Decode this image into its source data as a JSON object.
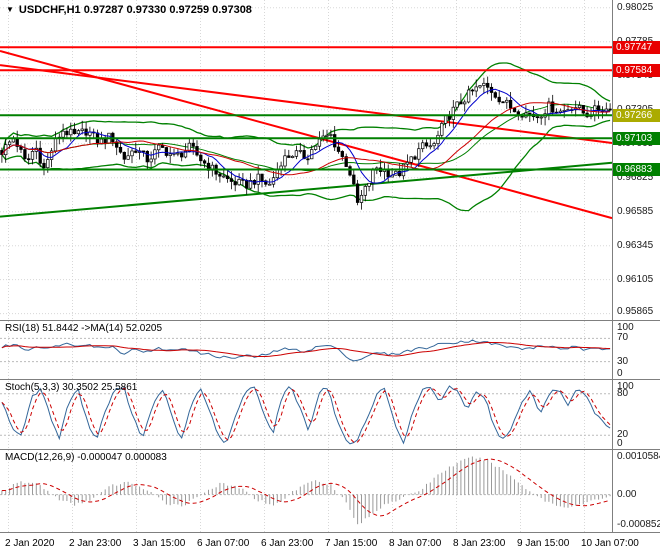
{
  "window": {
    "symbol_line": "USDCHF,H1 0.97287 0.97330 0.97259 0.97308"
  },
  "colors": {
    "background": "#FFFFFF",
    "grid": "#D8D8D8",
    "panel_border": "#7F7F7F",
    "candle": "#000000",
    "up_fill": "#FFFFFF",
    "down_fill": "#000000",
    "ma_fast": "#0000CC",
    "ma_slow": "#CC0000",
    "band": "#008000",
    "trend_red": "#FF0000",
    "level_red": "#FF0000",
    "level_green": "#008000",
    "current_label_bg": "#ABAB00",
    "label_red_bg": "#E80000",
    "label_green_bg": "#008000",
    "rsi_line": "#336699",
    "rsi_ma": "#CC0000",
    "stoch_line": "#336699",
    "stoch_signal": "#CC0000",
    "macd_hist": "#999999",
    "macd_signal": "#CC0000",
    "text": "#000000"
  },
  "chart_data": [
    {
      "type": "candlestick",
      "title": "USDCHF,H1",
      "ohlc_header": {
        "open": 0.97287,
        "high": 0.9733,
        "low": 0.97259,
        "close": 0.97308
      },
      "bars": 160,
      "ylim": [
        0.9582,
        0.9808
      ],
      "y_tick_values": [
        0.98025,
        0.97785,
        0.97545,
        0.97305,
        0.97065,
        0.96825,
        0.96585,
        0.96345,
        0.96105,
        0.95865
      ],
      "y_tick_labels": [
        "0.98025",
        "0.97785",
        "0.97545",
        "0.97305",
        "0.97065",
        "0.96825",
        "0.96585",
        "0.96345",
        "0.96105",
        "0.95865"
      ],
      "x_tick_labels": [
        "2 Jan 2020",
        "2 Jan 23:00",
        "3 Jan 15:00",
        "6 Jan 07:00",
        "6 Jan 23:00",
        "7 Jan 15:00",
        "8 Jan 07:00",
        "8 Jan 23:00",
        "9 Jan 15:00",
        "10 Jan 07:00"
      ],
      "levels": [
        {
          "price": 0.97747,
          "label": "0.97747",
          "line": "#FF0000",
          "bg": "#E80000"
        },
        {
          "price": 0.97584,
          "label": "0.97584",
          "line": "#FF0000",
          "bg": "#E80000"
        },
        {
          "price": 0.97266,
          "label": "0.97266",
          "line": "#008000",
          "bg": "#ABAB00"
        },
        {
          "price": 0.97103,
          "label": "0.97103",
          "line": "#008000",
          "bg": "#008000"
        },
        {
          "price": 0.96883,
          "label": "0.96883",
          "line": "#008000",
          "bg": "#008000"
        }
      ],
      "trendlines": [
        {
          "x0": 0,
          "p0": 0.9772,
          "x1": 1,
          "p1": 0.9654,
          "color": "#FF0000"
        },
        {
          "x0": 0,
          "p0": 0.9762,
          "x1": 1,
          "p1": 0.9707,
          "color": "#FF0000"
        },
        {
          "x0": 0,
          "p0": 0.9655,
          "x1": 1,
          "p1": 0.9693,
          "color": "#008000"
        }
      ],
      "close_path": [
        [
          0.0,
          0.9701
        ],
        [
          0.02,
          0.9711
        ],
        [
          0.04,
          0.9692
        ],
        [
          0.055,
          0.9705
        ],
        [
          0.07,
          0.9688
        ],
        [
          0.085,
          0.9706
        ],
        [
          0.1,
          0.9716
        ],
        [
          0.12,
          0.9712
        ],
        [
          0.14,
          0.9716
        ],
        [
          0.16,
          0.9707
        ],
        [
          0.18,
          0.9712
        ],
        [
          0.2,
          0.9696
        ],
        [
          0.22,
          0.9703
        ],
        [
          0.24,
          0.9695
        ],
        [
          0.26,
          0.9704
        ],
        [
          0.285,
          0.9697
        ],
        [
          0.31,
          0.9704
        ],
        [
          0.33,
          0.9694
        ],
        [
          0.35,
          0.9687
        ],
        [
          0.375,
          0.968
        ],
        [
          0.4,
          0.9677
        ],
        [
          0.42,
          0.9682
        ],
        [
          0.44,
          0.9677
        ],
        [
          0.46,
          0.9695
        ],
        [
          0.48,
          0.97
        ],
        [
          0.5,
          0.9697
        ],
        [
          0.52,
          0.9708
        ],
        [
          0.54,
          0.9713
        ],
        [
          0.555,
          0.97
        ],
        [
          0.57,
          0.969
        ],
        [
          0.585,
          0.9664
        ],
        [
          0.6,
          0.9676
        ],
        [
          0.615,
          0.969
        ],
        [
          0.63,
          0.9687
        ],
        [
          0.65,
          0.9684
        ],
        [
          0.67,
          0.9694
        ],
        [
          0.69,
          0.9704
        ],
        [
          0.71,
          0.9705
        ],
        [
          0.73,
          0.9724
        ],
        [
          0.75,
          0.9734
        ],
        [
          0.77,
          0.9742
        ],
        [
          0.79,
          0.9748
        ],
        [
          0.805,
          0.9744
        ],
        [
          0.82,
          0.9738
        ],
        [
          0.84,
          0.9731
        ],
        [
          0.86,
          0.9728
        ],
        [
          0.88,
          0.9726
        ],
        [
          0.9,
          0.9733
        ],
        [
          0.92,
          0.9729
        ],
        [
          0.94,
          0.9734
        ],
        [
          0.96,
          0.9727
        ],
        [
          0.98,
          0.9731
        ],
        [
          1.0,
          0.97308
        ]
      ],
      "overlays": {
        "ma_fast_period": 8,
        "ma_slow_period": 24,
        "band_period": 30,
        "band_dev": 2
      }
    },
    {
      "type": "line",
      "name": "RSI",
      "label": "RSI(18) 51.8442  ->MA(14) 52.0205",
      "value": 51.8442,
      "ma_value": 52.0205,
      "ma_period": 14,
      "ylim": [
        0,
        100
      ],
      "levels": [
        70,
        30
      ],
      "y_tick_values": [
        100,
        70,
        30,
        0
      ],
      "y_tick_labels": [
        "100",
        "70",
        "30",
        "0"
      ],
      "path": [
        [
          0.0,
          55
        ],
        [
          0.02,
          60
        ],
        [
          0.04,
          50
        ],
        [
          0.06,
          57
        ],
        [
          0.08,
          52
        ],
        [
          0.1,
          62
        ],
        [
          0.12,
          58
        ],
        [
          0.14,
          61
        ],
        [
          0.16,
          53
        ],
        [
          0.18,
          57
        ],
        [
          0.2,
          44
        ],
        [
          0.22,
          52
        ],
        [
          0.24,
          46
        ],
        [
          0.26,
          53
        ],
        [
          0.28,
          48
        ],
        [
          0.3,
          54
        ],
        [
          0.32,
          46
        ],
        [
          0.34,
          42
        ],
        [
          0.36,
          38
        ],
        [
          0.38,
          36
        ],
        [
          0.4,
          40
        ],
        [
          0.42,
          38
        ],
        [
          0.44,
          44
        ],
        [
          0.46,
          52
        ],
        [
          0.48,
          50
        ],
        [
          0.5,
          48
        ],
        [
          0.52,
          56
        ],
        [
          0.54,
          58
        ],
        [
          0.56,
          45
        ],
        [
          0.58,
          30
        ],
        [
          0.6,
          40
        ],
        [
          0.62,
          45
        ],
        [
          0.64,
          42
        ],
        [
          0.66,
          46
        ],
        [
          0.68,
          52
        ],
        [
          0.7,
          54
        ],
        [
          0.72,
          60
        ],
        [
          0.74,
          63
        ],
        [
          0.76,
          65
        ],
        [
          0.78,
          66
        ],
        [
          0.8,
          62
        ],
        [
          0.82,
          58
        ],
        [
          0.84,
          54
        ],
        [
          0.86,
          52
        ],
        [
          0.88,
          55
        ],
        [
          0.9,
          57
        ],
        [
          0.92,
          52
        ],
        [
          0.94,
          55
        ],
        [
          0.96,
          50
        ],
        [
          0.98,
          52
        ],
        [
          1.0,
          51.84
        ]
      ]
    },
    {
      "type": "line",
      "name": "Stochastic",
      "label": "Stoch(5,3,3) 30.3502 25.5861",
      "values": [
        30.3502,
        25.5861
      ],
      "signal_period": 3,
      "ylim": [
        0,
        100
      ],
      "levels": [
        80,
        20
      ],
      "y_tick_values": [
        100,
        80,
        20,
        0
      ],
      "y_tick_labels": [
        "100",
        "80",
        "20",
        "0"
      ],
      "path": [
        [
          0.0,
          70
        ],
        [
          0.015,
          35
        ],
        [
          0.03,
          15
        ],
        [
          0.05,
          75
        ],
        [
          0.065,
          90
        ],
        [
          0.08,
          45
        ],
        [
          0.095,
          15
        ],
        [
          0.11,
          70
        ],
        [
          0.125,
          88
        ],
        [
          0.14,
          40
        ],
        [
          0.155,
          12
        ],
        [
          0.17,
          55
        ],
        [
          0.185,
          85
        ],
        [
          0.2,
          90
        ],
        [
          0.215,
          50
        ],
        [
          0.23,
          15
        ],
        [
          0.25,
          65
        ],
        [
          0.265,
          88
        ],
        [
          0.28,
          45
        ],
        [
          0.295,
          12
        ],
        [
          0.31,
          60
        ],
        [
          0.325,
          90
        ],
        [
          0.34,
          60
        ],
        [
          0.355,
          18
        ],
        [
          0.37,
          8
        ],
        [
          0.385,
          50
        ],
        [
          0.4,
          82
        ],
        [
          0.415,
          90
        ],
        [
          0.43,
          55
        ],
        [
          0.445,
          20
        ],
        [
          0.46,
          75
        ],
        [
          0.475,
          92
        ],
        [
          0.49,
          60
        ],
        [
          0.505,
          25
        ],
        [
          0.52,
          80
        ],
        [
          0.535,
          90
        ],
        [
          0.55,
          45
        ],
        [
          0.565,
          12
        ],
        [
          0.58,
          8
        ],
        [
          0.6,
          40
        ],
        [
          0.615,
          78
        ],
        [
          0.63,
          88
        ],
        [
          0.645,
          38
        ],
        [
          0.66,
          10
        ],
        [
          0.675,
          50
        ],
        [
          0.69,
          85
        ],
        [
          0.705,
          90
        ],
        [
          0.72,
          65
        ],
        [
          0.735,
          90
        ],
        [
          0.75,
          85
        ],
        [
          0.765,
          55
        ],
        [
          0.78,
          85
        ],
        [
          0.795,
          75
        ],
        [
          0.81,
          30
        ],
        [
          0.825,
          12
        ],
        [
          0.84,
          35
        ],
        [
          0.855,
          70
        ],
        [
          0.87,
          85
        ],
        [
          0.885,
          50
        ],
        [
          0.9,
          80
        ],
        [
          0.915,
          88
        ],
        [
          0.93,
          60
        ],
        [
          0.945,
          85
        ],
        [
          0.96,
          78
        ],
        [
          0.975,
          50
        ],
        [
          1.0,
          30.35
        ]
      ]
    },
    {
      "type": "histogram+line",
      "name": "MACD",
      "label": "MACD(12,26,9) -0.000047 0.000083",
      "values": [
        -4.7e-05,
        8.3e-05
      ],
      "signal_period": 9,
      "ylim": [
        -0.00105,
        0.00125
      ],
      "y_tick_values": [
        0.0010584,
        0,
        -0.000852
      ],
      "y_tick_labels": [
        "0.0010584",
        "0.00",
        "-0.000852"
      ],
      "path": [
        [
          0.0,
          0.0001
        ],
        [
          0.03,
          0.00035
        ],
        [
          0.06,
          0.0003
        ],
        [
          0.09,
          -0.0001
        ],
        [
          0.12,
          -0.0003
        ],
        [
          0.15,
          -0.0001
        ],
        [
          0.18,
          0.00025
        ],
        [
          0.21,
          0.00035
        ],
        [
          0.24,
          0.0001
        ],
        [
          0.27,
          -0.00025
        ],
        [
          0.3,
          -0.0003
        ],
        [
          0.33,
          5e-05
        ],
        [
          0.36,
          0.0003
        ],
        [
          0.39,
          0.0002
        ],
        [
          0.42,
          -0.00015
        ],
        [
          0.45,
          -0.0003
        ],
        [
          0.48,
          0.0001
        ],
        [
          0.51,
          0.0004
        ],
        [
          0.54,
          0.0003
        ],
        [
          0.565,
          -0.0002
        ],
        [
          0.585,
          -0.00085
        ],
        [
          0.61,
          -0.00055
        ],
        [
          0.63,
          -0.00025
        ],
        [
          0.66,
          -0.0001
        ],
        [
          0.69,
          0.00015
        ],
        [
          0.72,
          0.0006
        ],
        [
          0.75,
          0.0009
        ],
        [
          0.775,
          0.00105
        ],
        [
          0.8,
          0.00095
        ],
        [
          0.83,
          0.0006
        ],
        [
          0.86,
          0.0002
        ],
        [
          0.89,
          -0.00015
        ],
        [
          0.92,
          -0.00035
        ],
        [
          0.95,
          -0.0003
        ],
        [
          0.975,
          -0.00015
        ],
        [
          1.0,
          -4.7e-05
        ]
      ]
    }
  ]
}
